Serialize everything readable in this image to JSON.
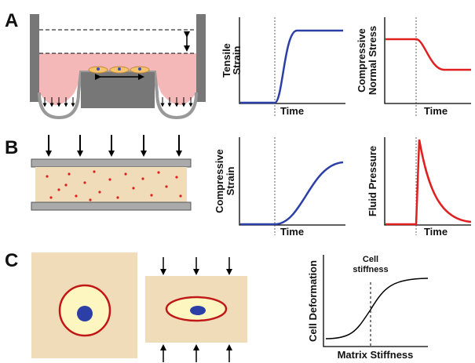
{
  "panels": [
    {
      "label": "A",
      "plots": [
        {
          "y_label": [
            "Tensile",
            "Strain"
          ],
          "x_label": "Time"
        },
        {
          "y_label": [
            "Compressive",
            "Normal Stress"
          ],
          "x_label": "Time"
        }
      ]
    },
    {
      "label": "B",
      "plots": [
        {
          "y_label": [
            "Compressive",
            "Strain"
          ],
          "x_label": "Time"
        },
        {
          "y_label": [
            "Fluid Pressure"
          ],
          "x_label": "Time"
        }
      ]
    },
    {
      "label": "C",
      "plots": [
        {
          "y_label": [
            "Cell Deformation"
          ],
          "x_label": "Matrix Stiffness",
          "annotation": [
            "Cell",
            "stiffness"
          ]
        }
      ]
    }
  ]
}
